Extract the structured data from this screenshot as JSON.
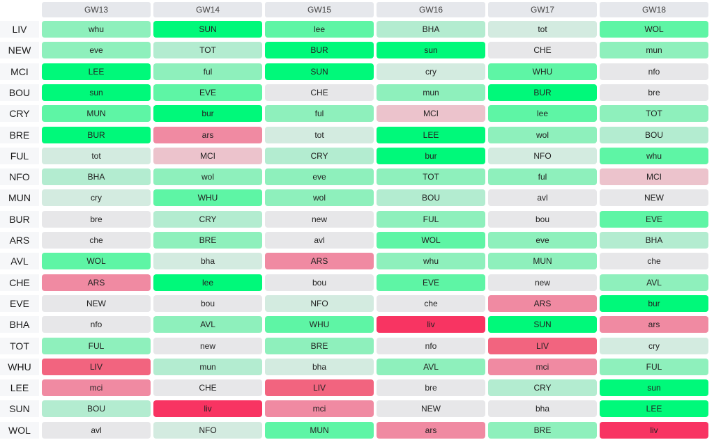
{
  "headers": [
    "GW13",
    "GW14",
    "GW15",
    "GW16",
    "GW17",
    "GW18"
  ],
  "difficulty_colors": {
    "5": "#00f97a",
    "4": "#5ef5a5",
    "3": "#8ef0bc",
    "2": "#b3ecd0",
    "1": "#d3ebe0",
    "0": "#e7e7e9",
    "-1": "#ecc3cc",
    "-2": "#f08aa2",
    "-3": "#f2647f",
    "-4": "#f83462"
  },
  "rows": [
    {
      "team": "LIV",
      "cells": [
        {
          "text": "whu",
          "level": 3
        },
        {
          "text": "SUN",
          "level": 5
        },
        {
          "text": "lee",
          "level": 4
        },
        {
          "text": "BHA",
          "level": 2
        },
        {
          "text": "tot",
          "level": 1
        },
        {
          "text": "WOL",
          "level": 4
        }
      ]
    },
    {
      "team": "NEW",
      "cells": [
        {
          "text": "eve",
          "level": 3
        },
        {
          "text": "TOT",
          "level": 2
        },
        {
          "text": "BUR",
          "level": 5
        },
        {
          "text": "sun",
          "level": 5
        },
        {
          "text": "CHE",
          "level": 0
        },
        {
          "text": "mun",
          "level": 3
        }
      ]
    },
    {
      "team": "MCI",
      "cells": [
        {
          "text": "LEE",
          "level": 5
        },
        {
          "text": "ful",
          "level": 3
        },
        {
          "text": "SUN",
          "level": 5
        },
        {
          "text": "cry",
          "level": 1
        },
        {
          "text": "WHU",
          "level": 4
        },
        {
          "text": "nfo",
          "level": 0
        }
      ]
    },
    {
      "team": "BOU",
      "cells": [
        {
          "text": "sun",
          "level": 5
        },
        {
          "text": "EVE",
          "level": 4
        },
        {
          "text": "CHE",
          "level": 0
        },
        {
          "text": "mun",
          "level": 3
        },
        {
          "text": "BUR",
          "level": 5
        },
        {
          "text": "bre",
          "level": 0
        }
      ]
    },
    {
      "team": "CRY",
      "cells": [
        {
          "text": "MUN",
          "level": 4
        },
        {
          "text": "bur",
          "level": 5
        },
        {
          "text": "ful",
          "level": 3
        },
        {
          "text": "MCI",
          "level": -1
        },
        {
          "text": "lee",
          "level": 4
        },
        {
          "text": "TOT",
          "level": 3
        }
      ]
    },
    {
      "team": "BRE",
      "cells": [
        {
          "text": "BUR",
          "level": 5
        },
        {
          "text": "ars",
          "level": -2
        },
        {
          "text": "tot",
          "level": 1
        },
        {
          "text": "LEE",
          "level": 5
        },
        {
          "text": "wol",
          "level": 3
        },
        {
          "text": "BOU",
          "level": 2
        }
      ]
    },
    {
      "team": "FUL",
      "cells": [
        {
          "text": "tot",
          "level": 1
        },
        {
          "text": "MCI",
          "level": -1
        },
        {
          "text": "CRY",
          "level": 2
        },
        {
          "text": "bur",
          "level": 5
        },
        {
          "text": "NFO",
          "level": 1
        },
        {
          "text": "whu",
          "level": 4
        }
      ]
    },
    {
      "team": "NFO",
      "cells": [
        {
          "text": "BHA",
          "level": 2
        },
        {
          "text": "wol",
          "level": 3
        },
        {
          "text": "eve",
          "level": 3
        },
        {
          "text": "TOT",
          "level": 3
        },
        {
          "text": "ful",
          "level": 3
        },
        {
          "text": "MCI",
          "level": -1
        }
      ]
    },
    {
      "team": "MUN",
      "cells": [
        {
          "text": "cry",
          "level": 1
        },
        {
          "text": "WHU",
          "level": 4
        },
        {
          "text": "wol",
          "level": 3
        },
        {
          "text": "BOU",
          "level": 2
        },
        {
          "text": "avl",
          "level": 0
        },
        {
          "text": "NEW",
          "level": 0
        }
      ]
    },
    {
      "team": "BUR",
      "cells": [
        {
          "text": "bre",
          "level": 0
        },
        {
          "text": "CRY",
          "level": 2
        },
        {
          "text": "new",
          "level": 0
        },
        {
          "text": "FUL",
          "level": 3
        },
        {
          "text": "bou",
          "level": 0
        },
        {
          "text": "EVE",
          "level": 4
        }
      ]
    },
    {
      "team": "ARS",
      "cells": [
        {
          "text": "che",
          "level": 0
        },
        {
          "text": "BRE",
          "level": 3
        },
        {
          "text": "avl",
          "level": 0
        },
        {
          "text": "WOL",
          "level": 4
        },
        {
          "text": "eve",
          "level": 3
        },
        {
          "text": "BHA",
          "level": 2
        }
      ]
    },
    {
      "team": "AVL",
      "cells": [
        {
          "text": "WOL",
          "level": 4
        },
        {
          "text": "bha",
          "level": 1
        },
        {
          "text": "ARS",
          "level": -2
        },
        {
          "text": "whu",
          "level": 3
        },
        {
          "text": "MUN",
          "level": 3
        },
        {
          "text": "che",
          "level": 0
        }
      ]
    },
    {
      "team": "CHE",
      "cells": [
        {
          "text": "ARS",
          "level": -2
        },
        {
          "text": "lee",
          "level": 5
        },
        {
          "text": "bou",
          "level": 0
        },
        {
          "text": "EVE",
          "level": 4
        },
        {
          "text": "new",
          "level": 0
        },
        {
          "text": "AVL",
          "level": 3
        }
      ]
    },
    {
      "team": "EVE",
      "cells": [
        {
          "text": "NEW",
          "level": 0
        },
        {
          "text": "bou",
          "level": 0
        },
        {
          "text": "NFO",
          "level": 1
        },
        {
          "text": "che",
          "level": 0
        },
        {
          "text": "ARS",
          "level": -2
        },
        {
          "text": "bur",
          "level": 5
        }
      ]
    },
    {
      "team": "BHA",
      "cells": [
        {
          "text": "nfo",
          "level": 0
        },
        {
          "text": "AVL",
          "level": 3
        },
        {
          "text": "WHU",
          "level": 4
        },
        {
          "text": "liv",
          "level": -4
        },
        {
          "text": "SUN",
          "level": 5
        },
        {
          "text": "ars",
          "level": -2
        }
      ]
    },
    {
      "team": "TOT",
      "cells": [
        {
          "text": "FUL",
          "level": 3
        },
        {
          "text": "new",
          "level": 0
        },
        {
          "text": "BRE",
          "level": 3
        },
        {
          "text": "nfo",
          "level": 0
        },
        {
          "text": "LIV",
          "level": -3
        },
        {
          "text": "cry",
          "level": 1
        }
      ]
    },
    {
      "team": "WHU",
      "cells": [
        {
          "text": "LIV",
          "level": -3
        },
        {
          "text": "mun",
          "level": 2
        },
        {
          "text": "bha",
          "level": 1
        },
        {
          "text": "AVL",
          "level": 3
        },
        {
          "text": "mci",
          "level": -2
        },
        {
          "text": "FUL",
          "level": 3
        }
      ]
    },
    {
      "team": "LEE",
      "cells": [
        {
          "text": "mci",
          "level": -2
        },
        {
          "text": "CHE",
          "level": 0
        },
        {
          "text": "LIV",
          "level": -3
        },
        {
          "text": "bre",
          "level": 0
        },
        {
          "text": "CRY",
          "level": 2
        },
        {
          "text": "sun",
          "level": 5
        }
      ]
    },
    {
      "team": "SUN",
      "cells": [
        {
          "text": "BOU",
          "level": 2
        },
        {
          "text": "liv",
          "level": -4
        },
        {
          "text": "mci",
          "level": -2
        },
        {
          "text": "NEW",
          "level": 0
        },
        {
          "text": "bha",
          "level": 0
        },
        {
          "text": "LEE",
          "level": 5
        }
      ]
    },
    {
      "team": "WOL",
      "cells": [
        {
          "text": "avl",
          "level": 0
        },
        {
          "text": "NFO",
          "level": 1
        },
        {
          "text": "MUN",
          "level": 4
        },
        {
          "text": "ars",
          "level": -2
        },
        {
          "text": "BRE",
          "level": 3
        },
        {
          "text": "liv",
          "level": -4
        }
      ]
    }
  ]
}
